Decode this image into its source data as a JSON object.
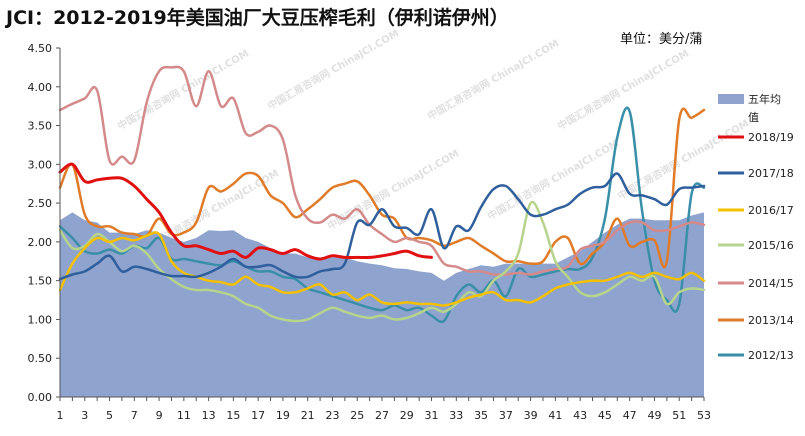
{
  "title": "JCI：2012-2019年美国油厂大豆压榨毛利（伊利诺伊州）",
  "unit_label": "单位：美分/蒲",
  "watermark": "中国汇易咨询网 ChinaJCI.COM",
  "chart_data": {
    "type": "line",
    "title": "JCI：2012-2019年美国油厂大豆压榨毛利（伊利诺伊州）",
    "xlabel": "",
    "ylabel": "",
    "xlim": [
      1,
      53
    ],
    "ylim": [
      0,
      4.5
    ],
    "y_ticks": [
      "0.00",
      "0.50",
      "1.00",
      "1.50",
      "2.00",
      "2.50",
      "3.00",
      "3.50",
      "4.00",
      "4.50"
    ],
    "x_ticks": [
      "1",
      "3",
      "5",
      "7",
      "9",
      "11",
      "13",
      "15",
      "17",
      "19",
      "21",
      "23",
      "25",
      "27",
      "29",
      "31",
      "33",
      "35",
      "37",
      "39",
      "41",
      "43",
      "45",
      "47",
      "49",
      "51",
      "53"
    ],
    "grid": false,
    "legend_position": "right",
    "area": {
      "name": "五年均值",
      "color": "#8fa3cf",
      "values": [
        2.28,
        2.38,
        2.28,
        2.25,
        2.12,
        2.12,
        2.1,
        2.15,
        2.12,
        2.05,
        2.0,
        2.05,
        2.15,
        2.14,
        2.15,
        2.05,
        2.0,
        1.92,
        1.85,
        1.85,
        1.8,
        1.78,
        1.8,
        1.8,
        1.75,
        1.72,
        1.7,
        1.66,
        1.65,
        1.62,
        1.6,
        1.5,
        1.6,
        1.65,
        1.7,
        1.68,
        1.72,
        1.72,
        1.72,
        1.72,
        1.72,
        1.8,
        1.88,
        2.0,
        2.12,
        2.22,
        2.3,
        2.3,
        2.28,
        2.28,
        2.28,
        2.34,
        2.38
      ]
    },
    "series": [
      {
        "name": "2018/19",
        "color": "#e01010",
        "values": [
          2.9,
          3.0,
          2.78,
          2.8,
          2.82,
          2.82,
          2.72,
          2.55,
          2.38,
          2.12,
          1.95,
          1.95,
          1.9,
          1.85,
          1.88,
          1.8,
          1.92,
          1.9,
          1.85,
          1.9,
          1.82,
          1.78,
          1.82,
          1.8,
          1.8,
          1.8,
          1.82,
          1.85,
          1.88,
          1.82,
          1.8
        ]
      },
      {
        "name": "2017/18",
        "color": "#2f5f9c",
        "values": [
          1.52,
          1.58,
          1.62,
          1.72,
          1.82,
          1.62,
          1.68,
          1.65,
          1.6,
          1.56,
          1.56,
          1.55,
          1.6,
          1.68,
          1.78,
          1.68,
          1.68,
          1.7,
          1.62,
          1.55,
          1.55,
          1.62,
          1.65,
          1.72,
          2.25,
          2.22,
          2.42,
          2.2,
          2.18,
          2.1,
          2.42,
          1.92,
          2.2,
          2.15,
          2.45,
          2.68,
          2.72,
          2.55,
          2.35,
          2.35,
          2.42,
          2.48,
          2.62,
          2.7,
          2.72,
          2.88,
          2.62,
          2.6,
          2.55,
          2.48,
          2.68,
          2.7,
          2.72
        ]
      },
      {
        "name": "2016/17",
        "color": "#f5c000",
        "values": [
          1.38,
          1.72,
          1.92,
          2.05,
          2.0,
          2.05,
          2.02,
          2.08,
          2.1,
          1.75,
          1.6,
          1.55,
          1.5,
          1.48,
          1.45,
          1.55,
          1.45,
          1.42,
          1.35,
          1.35,
          1.4,
          1.45,
          1.32,
          1.35,
          1.25,
          1.32,
          1.22,
          1.2,
          1.22,
          1.2,
          1.2,
          1.18,
          1.22,
          1.28,
          1.32,
          1.35,
          1.25,
          1.25,
          1.22,
          1.3,
          1.4,
          1.45,
          1.48,
          1.5,
          1.5,
          1.55,
          1.6,
          1.55,
          1.6,
          1.55,
          1.52,
          1.6,
          1.5
        ]
      },
      {
        "name": "2015/16",
        "color": "#b7d48c",
        "values": [
          2.15,
          1.92,
          1.95,
          2.1,
          2.0,
          1.88,
          1.95,
          1.85,
          1.65,
          1.52,
          1.42,
          1.38,
          1.38,
          1.35,
          1.3,
          1.2,
          1.15,
          1.05,
          1.0,
          0.98,
          1.0,
          1.08,
          1.15,
          1.1,
          1.05,
          1.02,
          1.05,
          1.0,
          1.02,
          1.08,
          1.15,
          1.1,
          1.2,
          1.35,
          1.3,
          1.5,
          1.62,
          1.85,
          2.5,
          2.25,
          1.75,
          1.55,
          1.35,
          1.3,
          1.35,
          1.45,
          1.55,
          1.5,
          1.55,
          1.2,
          1.35,
          1.4,
          1.38
        ]
      },
      {
        "name": "2014/15",
        "color": "#d48a8a",
        "values": [
          3.7,
          3.78,
          3.85,
          3.95,
          3.05,
          3.1,
          3.05,
          3.8,
          4.2,
          4.25,
          4.2,
          3.75,
          4.2,
          3.75,
          3.85,
          3.4,
          3.42,
          3.5,
          3.32,
          2.6,
          2.3,
          2.25,
          2.35,
          2.3,
          2.42,
          2.22,
          2.1,
          2.0,
          2.05,
          2.0,
          1.95,
          1.72,
          1.68,
          1.62,
          1.62,
          1.58,
          1.58,
          1.6,
          1.58,
          1.62,
          1.65,
          1.68,
          1.9,
          1.95,
          2.0,
          2.15,
          2.25,
          2.25,
          2.15,
          2.15,
          2.2,
          2.25,
          2.22
        ]
      },
      {
        "name": "2013/14",
        "color": "#e07b28",
        "values": [
          2.7,
          3.0,
          2.35,
          2.2,
          2.2,
          2.12,
          2.1,
          2.08,
          2.3,
          2.1,
          2.12,
          2.25,
          2.7,
          2.65,
          2.75,
          2.88,
          2.85,
          2.6,
          2.5,
          2.32,
          2.42,
          2.55,
          2.7,
          2.75,
          2.78,
          2.6,
          2.35,
          2.3,
          2.05,
          2.05,
          2.02,
          1.95,
          2.0,
          2.05,
          1.95,
          1.85,
          1.75,
          1.75,
          1.72,
          1.75,
          2.0,
          2.05,
          1.72,
          1.85,
          2.0,
          2.3,
          1.95,
          2.0,
          2.02,
          1.75,
          3.58,
          3.6,
          3.7
        ]
      },
      {
        "name": "2012/13",
        "color": "#3a8fa8",
        "values": [
          2.2,
          2.05,
          1.88,
          1.85,
          1.9,
          1.85,
          1.95,
          1.92,
          2.05,
          1.78,
          1.78,
          1.75,
          1.72,
          1.7,
          1.75,
          1.68,
          1.62,
          1.62,
          1.55,
          1.52,
          1.4,
          1.35,
          1.3,
          1.25,
          1.2,
          1.15,
          1.12,
          1.18,
          1.12,
          1.15,
          1.05,
          0.98,
          1.3,
          1.45,
          1.35,
          1.5,
          1.3,
          1.65,
          1.55,
          1.58,
          1.62,
          1.65,
          1.65,
          1.8,
          2.3,
          3.35,
          3.68,
          2.4,
          1.5,
          1.25,
          1.2,
          2.62,
          2.7
        ]
      }
    ]
  }
}
